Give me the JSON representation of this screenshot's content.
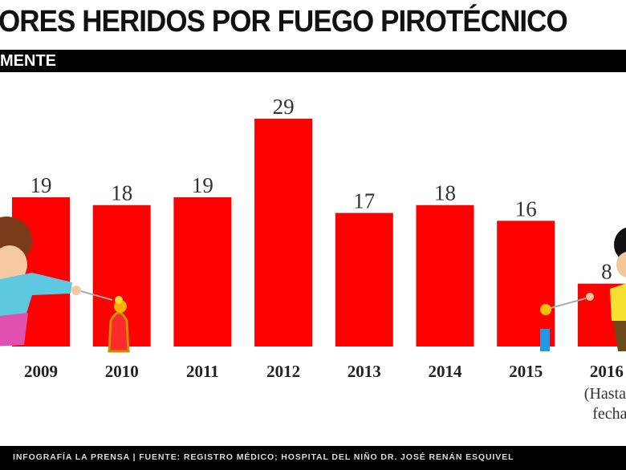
{
  "header": {
    "title": "ORES HERIDOS POR FUEGO PIROTÉCNICO",
    "subtitle": "MENTE"
  },
  "footer": {
    "credit": "INFOGRAFÍA LA PRENSA | FUENTE: REGISTRO MÉDICO; HOSPITAL DEL NIÑO DR. JOSÉ RENÁN ESQUIVEL"
  },
  "colors": {
    "bar": "#ff0000",
    "text": "#222222",
    "band": "#000000"
  },
  "chart_data": {
    "type": "bar",
    "categories": [
      "2009",
      "2010",
      "2011",
      "2012",
      "2013",
      "2014",
      "2015",
      "2016"
    ],
    "values": [
      19,
      18,
      19,
      29,
      17,
      18,
      16,
      8
    ],
    "notes": {
      "2016": "(Hasta la fecha)"
    },
    "note_visible_lines": [
      "(Hasta",
      "fecha"
    ],
    "ylim": [
      0,
      29
    ],
    "grid": false,
    "legend": "none"
  }
}
